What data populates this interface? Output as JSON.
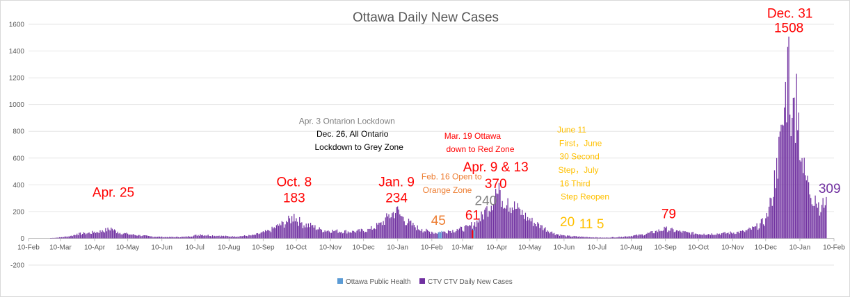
{
  "chart_data": {
    "type": "bar",
    "title": "Ottawa Daily New Cases",
    "xlabel": "",
    "ylabel": "",
    "ylim": [
      -200,
      1600
    ],
    "yticks": [
      -200,
      0,
      200,
      400,
      600,
      800,
      1000,
      1200,
      1400,
      1600
    ],
    "x_start": "2020-02-10",
    "xticks": [
      {
        "date": "2020-02-10",
        "label": "10-Feb"
      },
      {
        "date": "2020-03-10",
        "label": "10-Mar"
      },
      {
        "date": "2020-04-10",
        "label": "10-Apr"
      },
      {
        "date": "2020-05-10",
        "label": "10-May"
      },
      {
        "date": "2020-06-10",
        "label": "10-Jun"
      },
      {
        "date": "2020-07-10",
        "label": "10-Jul"
      },
      {
        "date": "2020-08-10",
        "label": "10-Aug"
      },
      {
        "date": "2020-09-10",
        "label": "10-Sep"
      },
      {
        "date": "2020-10-10",
        "label": "10-Oct"
      },
      {
        "date": "2020-11-10",
        "label": "10-Nov"
      },
      {
        "date": "2020-12-10",
        "label": "10-Dec"
      },
      {
        "date": "2021-01-10",
        "label": "10-Jan"
      },
      {
        "date": "2021-02-10",
        "label": "10-Feb"
      },
      {
        "date": "2021-03-10",
        "label": "10-Mar"
      },
      {
        "date": "2021-04-10",
        "label": "10-Apr"
      },
      {
        "date": "2021-05-10",
        "label": "10-May"
      },
      {
        "date": "2021-06-10",
        "label": "10-Jun"
      },
      {
        "date": "2021-07-10",
        "label": "10-Jul"
      },
      {
        "date": "2021-08-10",
        "label": "10-Aug"
      },
      {
        "date": "2021-09-10",
        "label": "10-Sep"
      },
      {
        "date": "2021-10-10",
        "label": "10-Oct"
      },
      {
        "date": "2021-11-10",
        "label": "10-Nov"
      },
      {
        "date": "2021-12-10",
        "label": "10-Dec"
      },
      {
        "date": "2022-01-10",
        "label": "10-Jan"
      },
      {
        "date": "2022-02-10",
        "label": "10-Feb"
      }
    ],
    "grid": true,
    "legend_position": "bottom",
    "series": [
      {
        "name": "Ottawa Public Health",
        "color": "#5b9bd5",
        "points": [
          [
            "2021-02-16",
            45
          ],
          [
            "2021-02-17",
            50
          ],
          [
            "2021-02-18",
            40
          ],
          [
            "2021-02-19",
            55
          ],
          [
            "2021-03-19",
            61
          ],
          [
            "2021-03-20",
            70
          ],
          [
            "2021-03-21",
            58
          ]
        ]
      },
      {
        "name": "CTV CTV Daily New Cases",
        "color": "#7030a0",
        "points": [
          [
            "2020-03-01",
            2
          ],
          [
            "2020-03-10",
            8
          ],
          [
            "2020-03-20",
            20
          ],
          [
            "2020-03-25",
            35
          ],
          [
            "2020-04-01",
            40
          ],
          [
            "2020-04-10",
            50
          ],
          [
            "2020-04-17",
            60
          ],
          [
            "2020-04-25",
            80
          ],
          [
            "2020-05-01",
            50
          ],
          [
            "2020-05-10",
            35
          ],
          [
            "2020-05-20",
            25
          ],
          [
            "2020-06-01",
            15
          ],
          [
            "2020-06-15",
            10
          ],
          [
            "2020-07-01",
            12
          ],
          [
            "2020-07-15",
            30
          ],
          [
            "2020-08-01",
            20
          ],
          [
            "2020-08-15",
            15
          ],
          [
            "2020-09-01",
            25
          ],
          [
            "2020-09-15",
            60
          ],
          [
            "2020-09-25",
            110
          ],
          [
            "2020-10-01",
            130
          ],
          [
            "2020-10-08",
            183
          ],
          [
            "2020-10-15",
            120
          ],
          [
            "2020-10-25",
            100
          ],
          [
            "2020-11-01",
            70
          ],
          [
            "2020-11-15",
            60
          ],
          [
            "2020-12-01",
            55
          ],
          [
            "2020-12-15",
            70
          ],
          [
            "2020-12-26",
            120
          ],
          [
            "2021-01-02",
            180
          ],
          [
            "2021-01-09",
            234
          ],
          [
            "2021-01-15",
            160
          ],
          [
            "2021-01-25",
            100
          ],
          [
            "2021-02-01",
            70
          ],
          [
            "2021-02-10",
            50
          ],
          [
            "2021-02-16",
            45
          ],
          [
            "2021-02-25",
            60
          ],
          [
            "2021-03-05",
            70
          ],
          [
            "2021-03-15",
            90
          ],
          [
            "2021-03-25",
            150
          ],
          [
            "2021-04-01",
            240
          ],
          [
            "2021-04-09",
            370
          ],
          [
            "2021-04-13",
            360
          ],
          [
            "2021-04-20",
            300
          ],
          [
            "2021-04-30",
            230
          ],
          [
            "2021-05-10",
            150
          ],
          [
            "2021-05-20",
            100
          ],
          [
            "2021-06-01",
            40
          ],
          [
            "2021-06-11",
            20
          ],
          [
            "2021-06-30",
            11
          ],
          [
            "2021-07-16",
            5
          ],
          [
            "2021-08-01",
            12
          ],
          [
            "2021-08-20",
            30
          ],
          [
            "2021-09-01",
            55
          ],
          [
            "2021-09-10",
            79
          ],
          [
            "2021-09-20",
            60
          ],
          [
            "2021-10-01",
            45
          ],
          [
            "2021-10-15",
            35
          ],
          [
            "2021-11-01",
            40
          ],
          [
            "2021-11-20",
            55
          ],
          [
            "2021-12-01",
            90
          ],
          [
            "2021-12-10",
            150
          ],
          [
            "2021-12-15",
            300
          ],
          [
            "2021-12-20",
            600
          ],
          [
            "2021-12-25",
            850
          ],
          [
            "2021-12-31",
            1508
          ],
          [
            "2022-01-03",
            900
          ],
          [
            "2022-01-07",
            1230
          ],
          [
            "2022-01-12",
            600
          ],
          [
            "2022-01-18",
            420
          ],
          [
            "2022-01-24",
            320
          ],
          [
            "2022-01-30",
            250
          ],
          [
            "2022-02-03",
            309
          ]
        ]
      }
    ],
    "annotations": [
      {
        "text": "Apr. 25",
        "date": "2020-04-27",
        "y": 310,
        "color": "#ff0000",
        "size": 19
      },
      {
        "text": "Oct. 8",
        "date": "2020-10-08",
        "y": 388,
        "color": "#ff0000",
        "size": 19
      },
      {
        "text": "183",
        "date": "2020-10-08",
        "y": 270,
        "color": "#ff0000",
        "size": 19
      },
      {
        "text": "Jan. 9",
        "date": "2021-01-09",
        "y": 388,
        "color": "#ff0000",
        "size": 19
      },
      {
        "text": "234",
        "date": "2021-01-09",
        "y": 270,
        "color": "#ff0000",
        "size": 19
      },
      {
        "text": "Apr. 3 Ontarion Lockdown",
        "date": "2020-11-25",
        "y": 855,
        "color": "#808080",
        "size": 12
      },
      {
        "text": "Dec. 26, All Ontario",
        "date": "2020-11-30",
        "y": 760,
        "color": "#000000",
        "size": 12
      },
      {
        "text": "Lockdown to Grey Zone",
        "date": "2020-12-06",
        "y": 660,
        "color": "#000000",
        "size": 12
      },
      {
        "text": "Mar. 19 Ottawa",
        "date": "2021-03-19",
        "y": 745,
        "color": "#ff0000",
        "size": 12
      },
      {
        "text": "down to Red Zone",
        "date": "2021-03-26",
        "y": 645,
        "color": "#ff0000",
        "size": 12
      },
      {
        "text": "Feb. 16 Open to",
        "date": "2021-02-28",
        "y": 440,
        "color": "#ed7d31",
        "size": 12
      },
      {
        "text": "Orange Zone",
        "date": "2021-02-24",
        "y": 340,
        "color": "#ed7d31",
        "size": 12
      },
      {
        "text": "Apr. 9 & 13",
        "date": "2021-04-09",
        "y": 500,
        "color": "#ff0000",
        "size": 19
      },
      {
        "text": "370",
        "date": "2021-04-09",
        "y": 375,
        "color": "#ff0000",
        "size": 19
      },
      {
        "text": "240",
        "date": "2021-03-31",
        "y": 250,
        "color": "#808080",
        "size": 19
      },
      {
        "text": "45",
        "date": "2021-02-16",
        "y": 100,
        "color": "#ed7d31",
        "size": 19
      },
      {
        "text": "61",
        "date": "2021-03-19",
        "y": 140,
        "color": "#ff0000",
        "size": 19
      },
      {
        "text": "June 11",
        "date": "2021-06-17",
        "y": 790,
        "color": "#ffc000",
        "size": 12
      },
      {
        "text": "First，June",
        "date": "2021-06-25",
        "y": 690,
        "color": "#ffc000",
        "size": 12
      },
      {
        "text": "30 Second",
        "date": "2021-06-24",
        "y": 590,
        "color": "#ffc000",
        "size": 12
      },
      {
        "text": "Step，July",
        "date": "2021-06-23",
        "y": 490,
        "color": "#ffc000",
        "size": 12
      },
      {
        "text": "16 Third",
        "date": "2021-06-20",
        "y": 390,
        "color": "#ffc000",
        "size": 12
      },
      {
        "text": "Step Reopen",
        "date": "2021-06-29",
        "y": 290,
        "color": "#ffc000",
        "size": 12
      },
      {
        "text": "20",
        "date": "2021-06-13",
        "y": 90,
        "color": "#ffc000",
        "size": 19
      },
      {
        "text": "11",
        "date": "2021-06-30",
        "y": 75,
        "color": "#ffc000",
        "size": 19
      },
      {
        "text": "5",
        "date": "2021-07-13",
        "y": 75,
        "color": "#ffc000",
        "size": 19
      },
      {
        "text": "79",
        "date": "2021-09-13",
        "y": 150,
        "color": "#ff0000",
        "size": 19
      },
      {
        "text": "Dec. 31",
        "date": "2022-01-01",
        "y": 1650,
        "color": "#ff0000",
        "size": 19
      },
      {
        "text": "1508",
        "date": "2021-12-31",
        "y": 1540,
        "color": "#ff0000",
        "size": 19
      },
      {
        "text": "309",
        "date": "2022-02-06",
        "y": 340,
        "color": "#7030a0",
        "size": 19
      }
    ]
  }
}
